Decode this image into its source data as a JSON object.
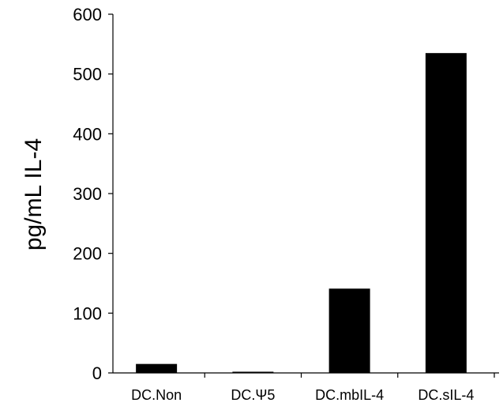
{
  "chart_data": {
    "type": "bar",
    "categories": [
      "DC.Non",
      "DC.Ψ5",
      "DC.mbIL-4",
      "DC.sIL-4"
    ],
    "values": [
      15,
      2,
      141,
      535
    ],
    "title": "",
    "xlabel": "",
    "ylabel": "pg/mL IL-4",
    "ylim": [
      0,
      600
    ],
    "yticks": [
      0,
      100,
      200,
      300,
      400,
      500,
      600
    ],
    "grid": false,
    "bar_color": "#000000"
  }
}
